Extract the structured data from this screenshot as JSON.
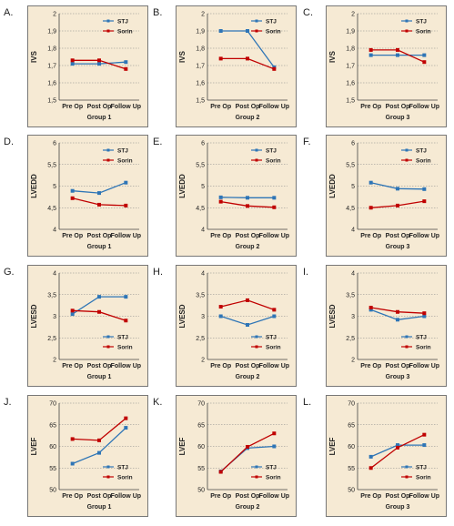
{
  "chart_data": [
    {
      "letter": "A.",
      "type": "line",
      "group": "Group 1",
      "ylabel": "IVS",
      "ylim": [
        1.5,
        2
      ],
      "yticks": [
        "1,5",
        "1,6",
        "1,7",
        "1,8",
        "1,9",
        "2"
      ],
      "categories": [
        "Pre Op",
        "Post Op",
        "Follow Up"
      ],
      "legend_position": "top-right",
      "series": [
        {
          "name": "STJ",
          "color": "#2e75b6",
          "values": [
            1.71,
            1.71,
            1.72
          ]
        },
        {
          "name": "Sorin",
          "color": "#c00000",
          "values": [
            1.73,
            1.73,
            1.68
          ]
        }
      ]
    },
    {
      "letter": "B.",
      "type": "line",
      "group": "Group 2",
      "ylabel": "IVS",
      "ylim": [
        1.5,
        2
      ],
      "yticks": [
        "1,5",
        "1,6",
        "1,7",
        "1,8",
        "1,9",
        "2"
      ],
      "categories": [
        "Pre Op",
        "Post Op",
        "Follow Up"
      ],
      "legend_position": "top-right",
      "series": [
        {
          "name": "STJ",
          "color": "#2e75b6",
          "values": [
            1.9,
            1.9,
            1.69
          ]
        },
        {
          "name": "Sorin",
          "color": "#c00000",
          "values": [
            1.74,
            1.74,
            1.68
          ]
        }
      ]
    },
    {
      "letter": "C.",
      "type": "line",
      "group": "Group 3",
      "ylabel": "IVS",
      "ylim": [
        1.5,
        2
      ],
      "yticks": [
        "1,5",
        "1,6",
        "1,7",
        "1,8",
        "1,9",
        "2"
      ],
      "categories": [
        "Pre Op",
        "Post Op",
        "Follow Up"
      ],
      "legend_position": "top-right",
      "series": [
        {
          "name": "STJ",
          "color": "#2e75b6",
          "values": [
            1.76,
            1.76,
            1.76
          ]
        },
        {
          "name": "Sorin",
          "color": "#c00000",
          "values": [
            1.79,
            1.79,
            1.72
          ]
        }
      ]
    },
    {
      "letter": "D.",
      "type": "line",
      "group": "Group 1",
      "ylabel": "LVEDD",
      "ylim": [
        4,
        6
      ],
      "yticks": [
        "4",
        "4,5",
        "5",
        "5,5",
        "6"
      ],
      "categories": [
        "Pre Op",
        "Post Op",
        "Follow Up"
      ],
      "legend_position": "top-right",
      "series": [
        {
          "name": "STJ",
          "color": "#2e75b6",
          "values": [
            4.89,
            4.84,
            5.08
          ]
        },
        {
          "name": "Sorin",
          "color": "#c00000",
          "values": [
            4.72,
            4.57,
            4.55
          ]
        }
      ]
    },
    {
      "letter": "E.",
      "type": "line",
      "group": "Group 2",
      "ylabel": "LVEDD",
      "ylim": [
        4,
        6
      ],
      "yticks": [
        "4",
        "4,5",
        "5",
        "5,5",
        "6"
      ],
      "categories": [
        "Pre Op",
        "Post Op",
        "Follow Up"
      ],
      "legend_position": "top-right",
      "series": [
        {
          "name": "STJ",
          "color": "#2e75b6",
          "values": [
            4.74,
            4.73,
            4.73
          ]
        },
        {
          "name": "Sorin",
          "color": "#c00000",
          "values": [
            4.64,
            4.54,
            4.51
          ]
        }
      ]
    },
    {
      "letter": "F.",
      "type": "line",
      "group": "Group 3",
      "ylabel": "LVEDD",
      "ylim": [
        4,
        6
      ],
      "yticks": [
        "4",
        "4,5",
        "5",
        "5,5",
        "6"
      ],
      "categories": [
        "Pre Op",
        "Post Op",
        "Follow Up"
      ],
      "legend_position": "top-right",
      "series": [
        {
          "name": "STJ",
          "color": "#2e75b6",
          "values": [
            5.08,
            4.94,
            4.93
          ]
        },
        {
          "name": "Sorin",
          "color": "#c00000",
          "values": [
            4.5,
            4.55,
            4.65
          ]
        }
      ]
    },
    {
      "letter": "G.",
      "type": "line",
      "group": "Group 1",
      "ylabel": "LVESD",
      "ylim": [
        2,
        4
      ],
      "yticks": [
        "2",
        "2,5",
        "3",
        "3,5",
        "4"
      ],
      "categories": [
        "Pre Op",
        "Post Op",
        "Follow Up"
      ],
      "legend_position": "bottom-right",
      "series": [
        {
          "name": "STJ",
          "color": "#2e75b6",
          "values": [
            3.05,
            3.45,
            3.45
          ]
        },
        {
          "name": "Sorin",
          "color": "#c00000",
          "values": [
            3.13,
            3.1,
            2.9
          ]
        }
      ]
    },
    {
      "letter": "H.",
      "type": "line",
      "group": "Group 2",
      "ylabel": "LVESD",
      "ylim": [
        2,
        4
      ],
      "yticks": [
        "2",
        "2,5",
        "3",
        "3,5",
        "4"
      ],
      "categories": [
        "Pre Op",
        "Post Op",
        "Follow Up"
      ],
      "legend_position": "bottom-right",
      "series": [
        {
          "name": "STJ",
          "color": "#2e75b6",
          "values": [
            3.0,
            2.8,
            3.0
          ]
        },
        {
          "name": "Sorin",
          "color": "#c00000",
          "values": [
            3.22,
            3.37,
            3.15
          ]
        }
      ]
    },
    {
      "letter": "I.",
      "type": "line",
      "group": "Group 3",
      "ylabel": "LVESD",
      "ylim": [
        2,
        4
      ],
      "yticks": [
        "2",
        "2,5",
        "3",
        "3,5",
        "4"
      ],
      "categories": [
        "Pre Op",
        "Post Op",
        "Follow Up"
      ],
      "legend_position": "bottom-right",
      "series": [
        {
          "name": "STJ",
          "color": "#2e75b6",
          "values": [
            3.15,
            2.92,
            3.0
          ]
        },
        {
          "name": "Sorin",
          "color": "#c00000",
          "values": [
            3.2,
            3.1,
            3.07
          ]
        }
      ]
    },
    {
      "letter": "J.",
      "type": "line",
      "group": "Group 1",
      "ylabel": "LVEF",
      "ylim": [
        50,
        70
      ],
      "yticks": [
        "50",
        "55",
        "60",
        "65",
        "70"
      ],
      "categories": [
        "Pre Op",
        "Post Op",
        "Follow Up"
      ],
      "legend_position": "bottom-right",
      "series": [
        {
          "name": "STJ",
          "color": "#2e75b6",
          "values": [
            56.0,
            58.5,
            64.3
          ]
        },
        {
          "name": "Sorin",
          "color": "#c00000",
          "values": [
            61.7,
            61.4,
            66.5
          ]
        }
      ]
    },
    {
      "letter": "K.",
      "type": "line",
      "group": "Group 2",
      "ylabel": "LVEF",
      "ylim": [
        50,
        70
      ],
      "yticks": [
        "50",
        "55",
        "60",
        "65",
        "70"
      ],
      "categories": [
        "Pre Op",
        "Post Op",
        "Follow Up"
      ],
      "legend_position": "bottom-right",
      "series": [
        {
          "name": "STJ",
          "color": "#2e75b6",
          "values": [
            54.2,
            59.6,
            60.0
          ]
        },
        {
          "name": "Sorin",
          "color": "#c00000",
          "values": [
            54.1,
            59.9,
            63.0
          ]
        }
      ]
    },
    {
      "letter": "L.",
      "type": "line",
      "group": "Group 3",
      "ylabel": "LVEF",
      "ylim": [
        50,
        70
      ],
      "yticks": [
        "50",
        "55",
        "60",
        "65",
        "70"
      ],
      "categories": [
        "Pre Op",
        "Post Op",
        "Follow Up"
      ],
      "legend_position": "bottom-right",
      "series": [
        {
          "name": "STJ",
          "color": "#2e75b6",
          "values": [
            57.6,
            60.3,
            60.3
          ]
        },
        {
          "name": "Sorin",
          "color": "#c00000",
          "values": [
            55.0,
            59.7,
            62.7
          ]
        }
      ]
    }
  ]
}
